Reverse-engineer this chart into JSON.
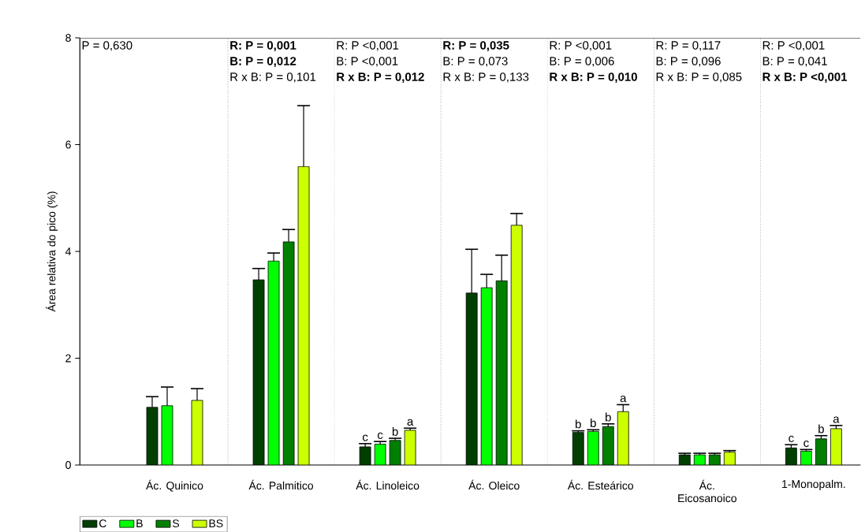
{
  "chart_data": {
    "type": "bar",
    "ylabel": "Área relativa do pico (%)",
    "categories": [
      "Ác. Quinico",
      "Ác. Palmitico",
      "Ác. Linoleico",
      "Ác. Oleico",
      "Ác. Esteárico",
      "Ác. Eicosanoico",
      "1-Monopalm."
    ],
    "series": [
      {
        "name": "C",
        "color": "#003f00",
        "values": [
          1.08,
          3.47,
          0.34,
          3.22,
          0.61,
          0.19,
          0.32
        ],
        "errors": [
          0.2,
          0.21,
          0.06,
          0.82,
          0.03,
          0.03,
          0.06
        ],
        "value_labels": [
          null,
          null,
          "c",
          null,
          "b",
          null,
          "c"
        ]
      },
      {
        "name": "B",
        "color": "#00ff00",
        "values": [
          1.11,
          3.82,
          0.39,
          3.32,
          0.63,
          0.19,
          0.26
        ],
        "errors": [
          0.35,
          0.15,
          0.05,
          0.25,
          0.03,
          0.03,
          0.03
        ],
        "value_labels": [
          null,
          null,
          "c",
          null,
          "b",
          null,
          "c"
        ]
      },
      {
        "name": "S",
        "color": "#007f00",
        "values": [
          null,
          4.18,
          0.46,
          3.45,
          0.72,
          0.19,
          0.49
        ],
        "errors": [
          null,
          0.23,
          0.04,
          0.48,
          0.05,
          0.03,
          0.06
        ],
        "value_labels": [
          null,
          null,
          "b",
          null,
          "b",
          null,
          "b"
        ]
      },
      {
        "name": "BS",
        "color": "#ccff00",
        "values": [
          1.21,
          5.59,
          0.65,
          4.49,
          1.0,
          0.24,
          0.68
        ],
        "errors": [
          0.22,
          1.14,
          0.04,
          0.22,
          0.13,
          0.03,
          0.06
        ],
        "value_labels": [
          null,
          null,
          "a",
          null,
          "a",
          null,
          "a"
        ]
      }
    ],
    "ylim": [
      0,
      8
    ],
    "yticks": [
      0,
      2,
      4,
      6,
      8
    ],
    "grid": false,
    "legend": "bottom left",
    "annotations": [
      "P = 0,630",
      "**R: P = 0,001**",
      "**B: P = 0,012**",
      "R x B: P = 0,101",
      "R: P <0,001",
      "B: P <0,001",
      "**R x B: P = 0,012**",
      "**R: P = 0,035**",
      "B: P = 0,073",
      "R x B: P = 0,133",
      "R: P <0,001",
      "B: P = 0,006",
      "**R x B: P = 0,010**",
      "R: P = 0,117",
      "B: P = 0,096",
      "R x B: P = 0,085",
      "R: P <0,001",
      "B: P = 0,041",
      "**R x B: P <0,001**"
    ]
  }
}
